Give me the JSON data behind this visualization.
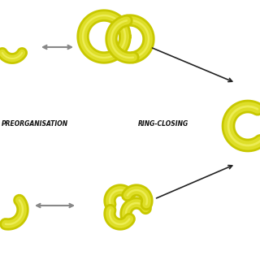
{
  "background_color": "#ffffff",
  "yellow_outer": "#c8c800",
  "yellow_main": "#dede28",
  "yellow_light": "#f0f060",
  "arrow_gray": "#888888",
  "arrow_dark": "#222222",
  "text_color": "#111111",
  "label1": "PREORGANISATION",
  "label2": "RING-CLOSING",
  "fig_width": 3.2,
  "fig_height": 3.2,
  "dpi": 100
}
